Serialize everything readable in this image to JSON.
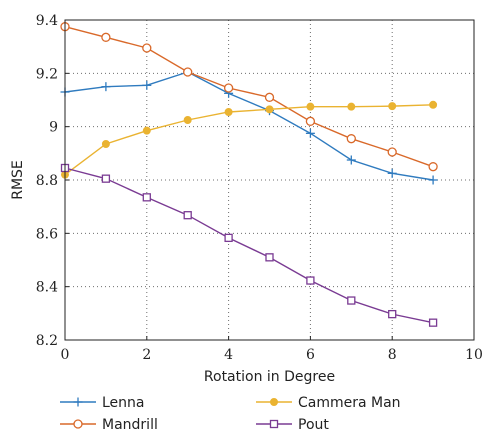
{
  "chart_data": {
    "type": "line",
    "xlabel": "Rotation in Degree",
    "ylabel": "RMSE",
    "xlim": [
      0,
      10
    ],
    "ylim": [
      8.2,
      9.4
    ],
    "xticks": [
      0,
      2,
      4,
      6,
      8,
      10
    ],
    "yticks": [
      8.2,
      8.4,
      8.6,
      8.8,
      9,
      9.2,
      9.4
    ],
    "xtick_labels": [
      "0",
      "2",
      "4",
      "6",
      "8",
      "10"
    ],
    "ytick_labels": [
      "8.2",
      "8.4",
      "8.6",
      "8.8",
      "9",
      "9.2",
      "9.4"
    ],
    "grid": true,
    "legend_placement": "below",
    "x": [
      0,
      1,
      2,
      3,
      4,
      5,
      6,
      7,
      8,
      9
    ],
    "series": [
      {
        "name": "Lenna",
        "marker": "plus",
        "color": "#2f7bbf",
        "values": [
          9.13,
          9.15,
          9.155,
          9.205,
          9.125,
          9.06,
          8.975,
          8.875,
          8.825,
          8.8
        ]
      },
      {
        "name": "Mandrill",
        "marker": "circle",
        "color": "#d9692a",
        "values": [
          9.375,
          9.335,
          9.295,
          9.205,
          9.145,
          9.11,
          9.02,
          8.955,
          8.905,
          8.85
        ]
      },
      {
        "name": "Cammera Man",
        "marker": "filled-circle",
        "color": "#eab331",
        "values": [
          8.82,
          8.935,
          8.985,
          9.025,
          9.055,
          9.065,
          9.075,
          9.075,
          9.077,
          9.082
        ]
      },
      {
        "name": "Pout",
        "marker": "square",
        "color": "#7a3b93",
        "values": [
          8.845,
          8.805,
          8.735,
          8.668,
          8.583,
          8.51,
          8.423,
          8.348,
          8.297,
          8.265
        ]
      }
    ]
  }
}
